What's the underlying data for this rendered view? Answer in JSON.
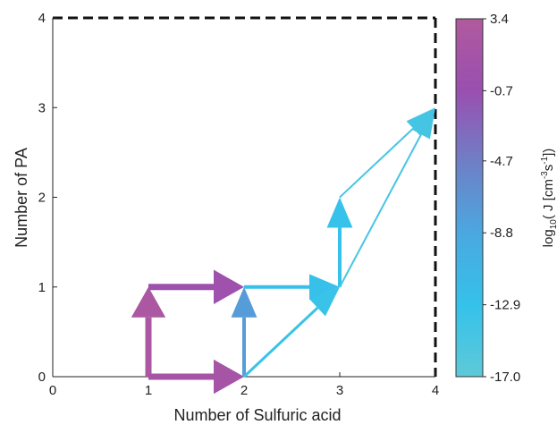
{
  "chart_data": {
    "type": "network",
    "xlabel": "Number of Sulfuric acid",
    "ylabel": "Number of PA",
    "xlim": [
      0,
      4
    ],
    "ylim": [
      0,
      4
    ],
    "xticks": [
      "0",
      "1",
      "2",
      "3",
      "4"
    ],
    "yticks": [
      "0",
      "1",
      "2",
      "3",
      "4"
    ],
    "colorbar": {
      "label_prefix": "log",
      "label_sub": "10",
      "label_rest": "( J [cm",
      "label_sup1": "-3",
      "label_mid": "s",
      "label_sup2": "-1",
      "label_end": "])",
      "ticks": [
        "3.4",
        "-0.7",
        "-4.7",
        "-8.8",
        "-12.9",
        "-17.0"
      ],
      "min": -17.0,
      "max": 3.4,
      "colors": [
        "#5ec9d8",
        "#35c2ea",
        "#4aa8e0",
        "#6f7fc6",
        "#9a4fb0",
        "#b05a9e"
      ]
    },
    "edges": [
      {
        "from": [
          1,
          0
        ],
        "to": [
          1,
          1
        ],
        "value": 2.4,
        "width": 7
      },
      {
        "from": [
          1,
          0
        ],
        "to": [
          2,
          0
        ],
        "value": 1.6,
        "width": 7
      },
      {
        "from": [
          1,
          1
        ],
        "to": [
          2,
          1
        ],
        "value": 0.0,
        "width": 7
      },
      {
        "from": [
          2,
          0
        ],
        "to": [
          2,
          1
        ],
        "value": -7.6,
        "width": 4
      },
      {
        "from": [
          2,
          1
        ],
        "to": [
          3,
          1
        ],
        "value": -12.6,
        "width": 4
      },
      {
        "from": [
          2,
          0
        ],
        "to": [
          3,
          1
        ],
        "value": -13.3,
        "width": 3
      },
      {
        "from": [
          3,
          1
        ],
        "to": [
          3,
          2
        ],
        "value": -13.0,
        "width": 4
      },
      {
        "from": [
          3,
          1
        ],
        "to": [
          4,
          3
        ],
        "value": -14.6,
        "width": 2
      },
      {
        "from": [
          3,
          2
        ],
        "to": [
          4,
          3
        ],
        "value": -14.4,
        "width": 2
      }
    ]
  }
}
